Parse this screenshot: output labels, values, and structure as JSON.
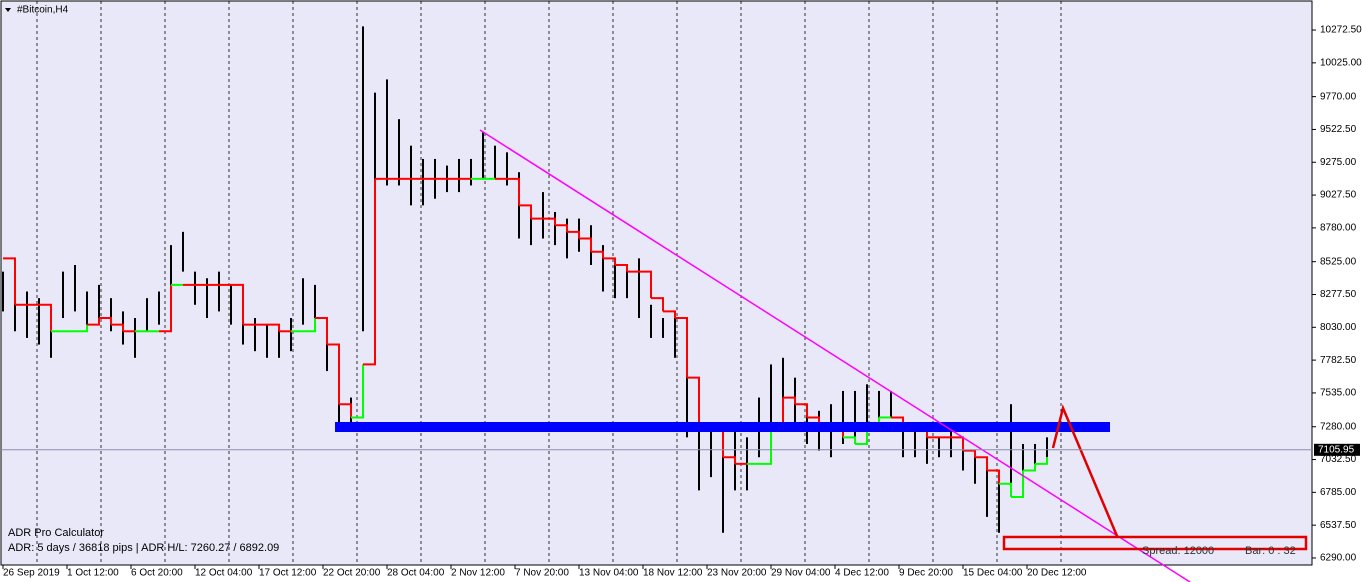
{
  "chart_data": {
    "type": "range-bar",
    "title": "#Bitcoin,H4",
    "x": [
      0,
      6,
      12,
      18,
      24,
      30,
      36,
      42,
      48,
      54,
      60,
      66,
      72,
      78,
      84,
      90,
      96,
      102,
      108,
      114,
      120,
      126,
      132,
      138,
      144,
      150,
      156,
      162,
      168,
      174,
      180,
      186,
      192,
      198,
      204,
      210,
      216,
      222,
      228,
      234,
      240,
      246,
      252,
      258,
      264,
      270,
      276,
      282,
      288,
      294,
      300,
      306,
      312,
      318,
      324,
      330,
      336,
      342,
      348,
      354,
      360,
      366,
      372,
      378,
      384,
      390,
      396,
      402,
      408,
      414,
      420,
      426,
      432,
      438,
      444,
      450,
      456,
      462,
      468,
      474,
      480,
      486,
      492,
      498,
      504,
      510,
      516,
      522
    ],
    "high": [
      8450,
      8350,
      8300,
      8250,
      8200,
      8450,
      8500,
      8300,
      8350,
      8250,
      8150,
      8100,
      8250,
      8300,
      8650,
      8750,
      8450,
      8400,
      8450,
      8350,
      8150,
      8100,
      8050,
      8050,
      8100,
      8400,
      8350,
      8100,
      7450,
      7500,
      10300,
      9800,
      9900,
      9600,
      9400,
      9300,
      9300,
      9250,
      9300,
      9300,
      9500,
      9400,
      9350,
      9200,
      8950,
      9050,
      8900,
      8850,
      8850,
      8800,
      8650,
      8550,
      8500,
      8550,
      8200,
      8100,
      8150,
      7700,
      7300,
      7300,
      7250,
      7250,
      7200,
      7500,
      7750,
      7800,
      7650,
      7450,
      7400,
      7450,
      7550,
      7550,
      7600,
      7550,
      7550,
      7350,
      7250,
      7200,
      7200,
      7250,
      7100,
      7050,
      6950,
      6850,
      7450,
      7150,
      7150,
      7200
    ],
    "low": [
      8150,
      8000,
      7950,
      7900,
      7800,
      8100,
      8150,
      8050,
      8050,
      8000,
      7900,
      7800,
      8000,
      8050,
      8300,
      8450,
      8200,
      8100,
      8150,
      8050,
      7900,
      7850,
      7800,
      7800,
      7850,
      8050,
      8100,
      7700,
      7250,
      7300,
      8000,
      9000,
      9100,
      9100,
      8950,
      8950,
      9000,
      9050,
      9050,
      9100,
      9150,
      9150,
      9100,
      8700,
      8650,
      8700,
      8650,
      8550,
      8600,
      8500,
      8300,
      8250,
      8250,
      8100,
      7950,
      7950,
      7800,
      7200,
      6800,
      6900,
      6480,
      6800,
      6800,
      7050,
      7300,
      7450,
      7250,
      7150,
      7100,
      7050,
      7150,
      7200,
      7300,
      7350,
      7350,
      7050,
      7050,
      7000,
      7050,
      7050,
      6950,
      6850,
      6600,
      6480,
      6800,
      6950,
      7000,
      7050
    ],
    "line": [
      8550,
      8200,
      8200,
      8200,
      8000,
      8000,
      8000,
      8050,
      8100,
      8050,
      8000,
      8000,
      8000,
      8000,
      8350,
      8350,
      8350,
      8350,
      8350,
      8350,
      8050,
      8050,
      8050,
      8000,
      8000,
      8000,
      8100,
      7900,
      7450,
      7350,
      7750,
      9150,
      9150,
      9150,
      9150,
      9150,
      9150,
      9150,
      9150,
      9150,
      9150,
      9150,
      9150,
      8950,
      8850,
      8850,
      8800,
      8750,
      8700,
      8600,
      8550,
      8500,
      8450,
      8450,
      8250,
      8150,
      8100,
      7650,
      7250,
      7250,
      7050,
      7000,
      7000,
      7000,
      7250,
      7500,
      7450,
      7350,
      7300,
      7250,
      7200,
      7150,
      7300,
      7350,
      7350,
      7300,
      7250,
      7200,
      7200,
      7200,
      7100,
      7050,
      6950,
      6850,
      6750,
      6950,
      7000,
      7050
    ],
    "bar_color": "#000000",
    "up_color": "#00ff00",
    "down_color": "#ff0000",
    "xlim": [
      -1.5,
      654.5
    ],
    "xticks": [
      {
        "value": 0,
        "label": "26 Sep 2019"
      },
      {
        "value": 32,
        "label": "1 Oct 12:00"
      },
      {
        "value": 64,
        "label": "6 Oct 20:00"
      },
      {
        "value": 96,
        "label": "12 Oct 04:00"
      },
      {
        "value": 128,
        "label": "17 Oct 12:00"
      },
      {
        "value": 160,
        "label": "22 Oct 20:00"
      },
      {
        "value": 192,
        "label": "28 Oct 04:00"
      },
      {
        "value": 224,
        "label": "2 Nov 12:00"
      },
      {
        "value": 256,
        "label": "7 Nov 20:00"
      },
      {
        "value": 288,
        "label": "13 Nov 04:00"
      },
      {
        "value": 320,
        "label": "18 Nov 12:00"
      },
      {
        "value": 352,
        "label": "23 Nov 20:00"
      },
      {
        "value": 384,
        "label": "29 Nov 04:00"
      },
      {
        "value": 416,
        "label": "4 Dec 12:00"
      },
      {
        "value": 448,
        "label": "9 Dec 20:00"
      },
      {
        "value": 480,
        "label": "15 Dec 04:00"
      },
      {
        "value": 512,
        "label": "20 Dec 12:00"
      }
    ],
    "ylim": [
      6237,
      10499
    ],
    "yticks": [
      {
        "value": 10272.5,
        "label": "10272.50"
      },
      {
        "value": 10025,
        "label": "10025.00"
      },
      {
        "value": 9770,
        "label": "9770.00"
      },
      {
        "value": 9522.5,
        "label": "9522.50"
      },
      {
        "value": 9275,
        "label": "9275.00"
      },
      {
        "value": 9027.5,
        "label": "9027.50"
      },
      {
        "value": 8780,
        "label": "8780.00"
      },
      {
        "value": 8525,
        "label": "8525.00"
      },
      {
        "value": 8277.5,
        "label": "8277.50"
      },
      {
        "value": 8030,
        "label": "8030.00"
      },
      {
        "value": 7782.5,
        "label": "7782.50"
      },
      {
        "value": 7535,
        "label": "7535.00"
      },
      {
        "value": 7280,
        "label": "7280.00"
      },
      {
        "value": 7032.5,
        "label": "7032.50"
      },
      {
        "value": 6785,
        "label": "6785.00"
      },
      {
        "value": 6537.5,
        "label": "6537.50"
      },
      {
        "value": 6290,
        "label": "6290.00"
      }
    ],
    "current_price": 7105.95,
    "adr_title": "ADR Pro Calculator",
    "adr_text": "ADR: 5 days / 36818 pips | ADR H/L: 7260.27 / 6892.09",
    "spread": "Spread: 12000",
    "bar_info": "Bar: 0 : 32"
  }
}
